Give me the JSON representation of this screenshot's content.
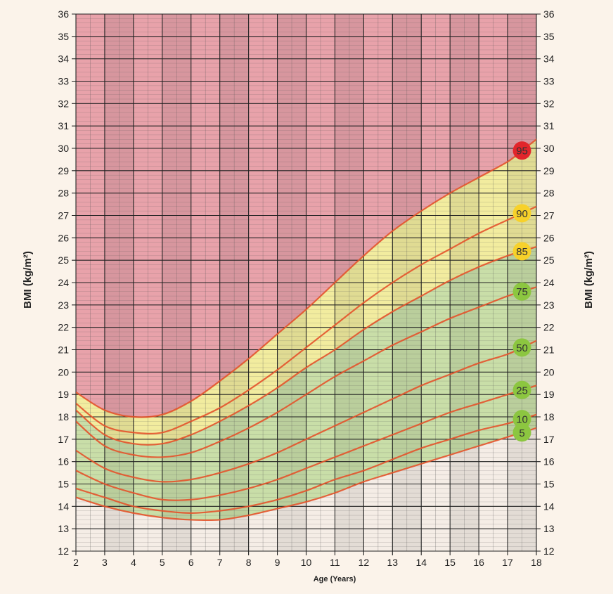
{
  "chart_data": {
    "type": "line",
    "title": "",
    "xlabel": "Age (Years)",
    "ylabel": "BMI (kg/m²)",
    "xlim": [
      2,
      18
    ],
    "ylim": [
      12,
      36
    ],
    "x_ticks": [
      2,
      3,
      4,
      5,
      6,
      7,
      8,
      9,
      10,
      11,
      12,
      13,
      14,
      15,
      16,
      17,
      18
    ],
    "y_ticks": [
      12,
      13,
      14,
      15,
      16,
      17,
      18,
      19,
      20,
      21,
      22,
      23,
      24,
      25,
      26,
      27,
      28,
      29,
      30,
      31,
      32,
      33,
      34,
      35,
      36
    ],
    "grid": true,
    "legend": "none",
    "band_colors": {
      "obese": "#e8a2aa",
      "overweight": "#f2ec9f",
      "healthy": "#c9dea8",
      "underweight": "#f5ede6"
    },
    "badge_colors": {
      "95": "#e2252b",
      "90": "#f7d12a",
      "85": "#f7d12a",
      "75": "#8cc640",
      "50": "#8cc640",
      "25": "#8cc640",
      "10": "#8cc640",
      "5": "#8cc640"
    },
    "x": [
      2,
      3,
      4,
      5,
      6,
      7,
      8,
      9,
      10,
      11,
      12,
      13,
      14,
      15,
      16,
      17,
      17.5
    ],
    "series": [
      {
        "name": "95",
        "values": [
          19.1,
          18.3,
          18.0,
          18.1,
          18.7,
          19.6,
          20.6,
          21.7,
          22.8,
          24.0,
          25.2,
          26.3,
          27.2,
          28.0,
          28.7,
          29.4,
          29.9
        ]
      },
      {
        "name": "90",
        "values": [
          18.6,
          17.6,
          17.3,
          17.3,
          17.8,
          18.4,
          19.2,
          20.1,
          21.1,
          22.1,
          23.1,
          24.0,
          24.8,
          25.5,
          26.2,
          26.8,
          27.1
        ]
      },
      {
        "name": "85",
        "values": [
          18.3,
          17.2,
          16.8,
          16.8,
          17.2,
          17.8,
          18.5,
          19.3,
          20.2,
          21.0,
          21.9,
          22.7,
          23.4,
          24.1,
          24.7,
          25.2,
          25.4
        ]
      },
      {
        "name": "75",
        "values": [
          17.8,
          16.7,
          16.3,
          16.2,
          16.4,
          16.9,
          17.5,
          18.2,
          19.0,
          19.8,
          20.5,
          21.2,
          21.8,
          22.4,
          22.9,
          23.4,
          23.6
        ]
      },
      {
        "name": "50",
        "values": [
          16.5,
          15.7,
          15.3,
          15.1,
          15.2,
          15.5,
          15.9,
          16.4,
          17.0,
          17.6,
          18.2,
          18.8,
          19.4,
          19.9,
          20.4,
          20.8,
          21.1
        ]
      },
      {
        "name": "25",
        "values": [
          15.6,
          15.0,
          14.6,
          14.3,
          14.3,
          14.5,
          14.8,
          15.2,
          15.7,
          16.2,
          16.7,
          17.2,
          17.7,
          18.2,
          18.6,
          19.0,
          19.2
        ]
      },
      {
        "name": "10",
        "values": [
          14.8,
          14.4,
          14.0,
          13.8,
          13.7,
          13.8,
          14.0,
          14.3,
          14.7,
          15.2,
          15.6,
          16.1,
          16.6,
          17.0,
          17.4,
          17.7,
          17.9
        ]
      },
      {
        "name": "5",
        "values": [
          14.4,
          14.0,
          13.7,
          13.5,
          13.4,
          13.4,
          13.6,
          13.9,
          14.2,
          14.6,
          15.1,
          15.5,
          15.9,
          16.3,
          16.7,
          17.1,
          17.3
        ]
      }
    ]
  }
}
